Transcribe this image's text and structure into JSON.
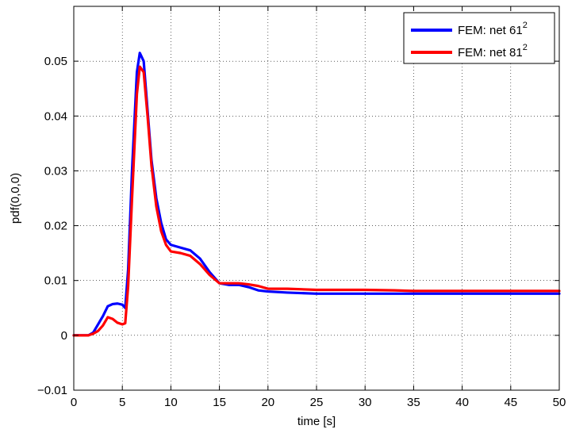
{
  "chart_data": {
    "type": "line",
    "title": "",
    "xlabel": "time [s]",
    "ylabel": "pdf(0,0,0)",
    "xlim": [
      0,
      50
    ],
    "ylim": [
      -0.01,
      0.06
    ],
    "xticks": [
      0,
      5,
      10,
      15,
      20,
      25,
      30,
      35,
      40,
      45,
      50
    ],
    "yticks": [
      -0.01,
      0,
      0.01,
      0.02,
      0.03,
      0.04,
      0.05
    ],
    "xtick_labels": [
      "0",
      "5",
      "10",
      "15",
      "20",
      "25",
      "30",
      "35",
      "40",
      "45",
      "50"
    ],
    "ytick_labels": [
      "−0.01",
      "0",
      "0.01",
      "0.02",
      "0.03",
      "0.04",
      "0.05"
    ],
    "grid": true,
    "legend_position": "top-right",
    "series": [
      {
        "name": "FEM: net 61",
        "name_sup": "2",
        "color": "#0000ff",
        "points": [
          [
            0,
            0
          ],
          [
            1.5,
            0
          ],
          [
            2,
            0.0005
          ],
          [
            2.5,
            0.002
          ],
          [
            3,
            0.0035
          ],
          [
            3.5,
            0.0053
          ],
          [
            4,
            0.0057
          ],
          [
            4.5,
            0.0058
          ],
          [
            5,
            0.0056
          ],
          [
            5.3,
            0.005
          ],
          [
            5.6,
            0.012
          ],
          [
            6,
            0.03
          ],
          [
            6.5,
            0.048
          ],
          [
            6.8,
            0.0515
          ],
          [
            7.2,
            0.05
          ],
          [
            7.6,
            0.041
          ],
          [
            8,
            0.032
          ],
          [
            8.5,
            0.025
          ],
          [
            9,
            0.0205
          ],
          [
            9.5,
            0.0175
          ],
          [
            10,
            0.0165
          ],
          [
            11,
            0.016
          ],
          [
            12,
            0.0155
          ],
          [
            13,
            0.014
          ],
          [
            14,
            0.0115
          ],
          [
            15,
            0.0095
          ],
          [
            16,
            0.0092
          ],
          [
            17,
            0.0092
          ],
          [
            18,
            0.0088
          ],
          [
            19,
            0.0082
          ],
          [
            20,
            0.008
          ],
          [
            22,
            0.0078
          ],
          [
            25,
            0.0076
          ],
          [
            30,
            0.0076
          ],
          [
            35,
            0.0076
          ],
          [
            40,
            0.0076
          ],
          [
            45,
            0.0076
          ],
          [
            50,
            0.0076
          ]
        ]
      },
      {
        "name": "FEM: net 81",
        "name_sup": "2",
        "color": "#ff0000",
        "points": [
          [
            0,
            0
          ],
          [
            1.5,
            0
          ],
          [
            2,
            0.0003
          ],
          [
            2.5,
            0.0008
          ],
          [
            3,
            0.0018
          ],
          [
            3.5,
            0.0033
          ],
          [
            4,
            0.003
          ],
          [
            4.5,
            0.0023
          ],
          [
            5,
            0.002
          ],
          [
            5.3,
            0.0022
          ],
          [
            5.6,
            0.009
          ],
          [
            6,
            0.025
          ],
          [
            6.5,
            0.044
          ],
          [
            6.8,
            0.049
          ],
          [
            7.2,
            0.048
          ],
          [
            7.6,
            0.04
          ],
          [
            8,
            0.031
          ],
          [
            8.5,
            0.0235
          ],
          [
            9,
            0.019
          ],
          [
            9.5,
            0.0165
          ],
          [
            10,
            0.0153
          ],
          [
            11,
            0.015
          ],
          [
            12,
            0.0145
          ],
          [
            13,
            0.013
          ],
          [
            14,
            0.011
          ],
          [
            15,
            0.0095
          ],
          [
            16,
            0.0095
          ],
          [
            17,
            0.0095
          ],
          [
            18,
            0.0093
          ],
          [
            19,
            0.009
          ],
          [
            20,
            0.0085
          ],
          [
            22,
            0.0085
          ],
          [
            25,
            0.0083
          ],
          [
            30,
            0.0083
          ],
          [
            33,
            0.0082
          ],
          [
            35,
            0.0081
          ],
          [
            40,
            0.0081
          ],
          [
            45,
            0.0081
          ],
          [
            50,
            0.0081
          ]
        ]
      }
    ]
  }
}
